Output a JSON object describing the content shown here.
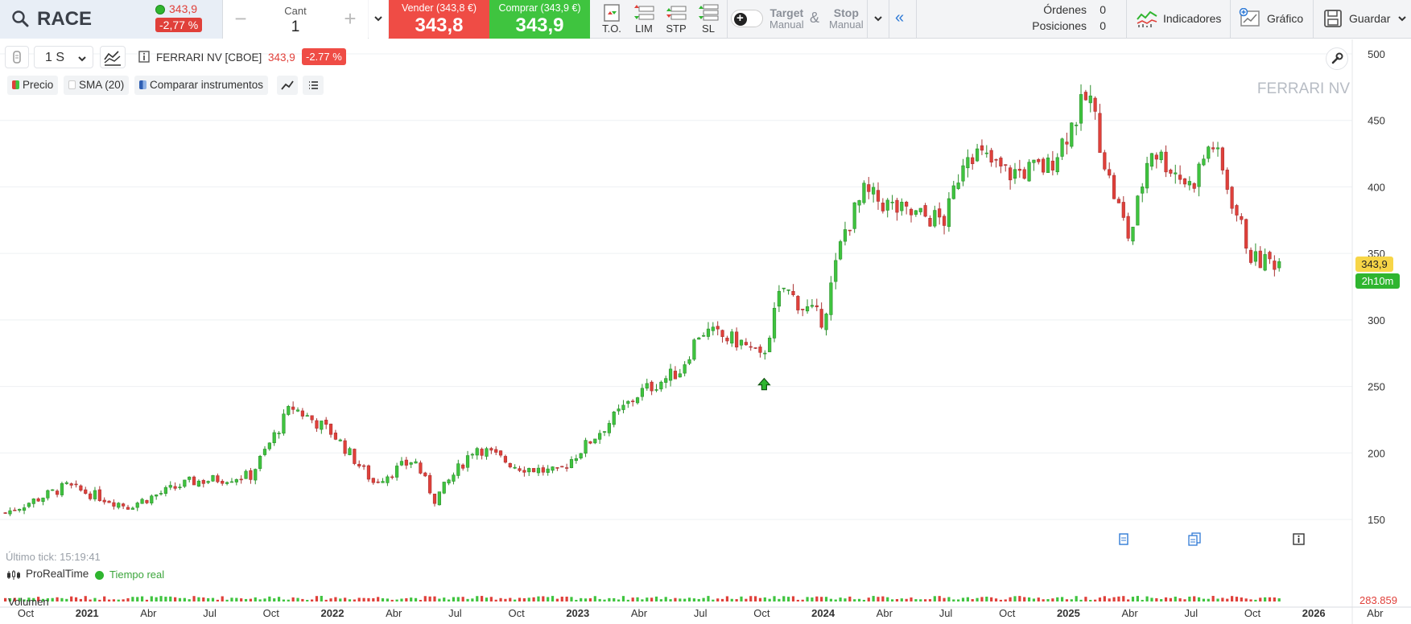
{
  "toolbar": {
    "symbol": "RACE",
    "symbol_price": "343,9",
    "symbol_change": "-2,77 %",
    "qty_label": "Cant",
    "qty_value": "1",
    "qty_minus": "−",
    "qty_plus": "+",
    "sell_label": "Vender (343,8 €)",
    "sell_value": "343,8",
    "buy_label": "Comprar (343,9 €)",
    "buy_value": "343,9",
    "order_types": [
      "T.O.",
      "LIM",
      "STP",
      "SL"
    ],
    "target_label": "Target",
    "target_sub": "Manual",
    "amp": "&",
    "stop_label": "Stop",
    "stop_sub": "Manual",
    "orders_label": "Órdenes",
    "orders_value": "0",
    "positions_label": "Posiciones",
    "positions_value": "0",
    "indicators_label": "Indicadores",
    "chart_label": "Gráfico",
    "save_label": "Guardar"
  },
  "chart_header": {
    "timeframe": "1 S",
    "instrument": "FERRARI NV [CBOE]",
    "price": "343,9",
    "change": "-2.77 %",
    "legend_price": "Precio",
    "legend_sma": "SMA (20)",
    "legend_compare": "Comparar instrumentos",
    "watermark": "FERRARI NV"
  },
  "status": {
    "last_tick": "Último tick: 15:19:41",
    "brand": "ProRealTime",
    "realtime": "Tiempo real",
    "price_tag": "343,9",
    "time_tag": "2h10m",
    "volume_label": "Volumen",
    "volume_value": "283.859"
  },
  "colors": {
    "up": "#3fc43f",
    "down": "#e0403a",
    "sell": "#ef4c45",
    "buy": "#3fc43f",
    "accent": "#2f7ad6"
  },
  "chart_data": {
    "type": "candlestick",
    "ylim": [
      140,
      505
    ],
    "y_ticks": [
      150,
      200,
      250,
      300,
      350,
      400,
      450,
      500
    ],
    "x_ticks": [
      "Oct",
      "2021",
      "Abr",
      "Jul",
      "Oct",
      "2022",
      "Abr",
      "Jul",
      "Oct",
      "2023",
      "Abr",
      "Jul",
      "Oct",
      "2024",
      "Abr",
      "Jul",
      "Oct",
      "2025",
      "Abr",
      "Jul",
      "Oct",
      "2026",
      "Abr"
    ],
    "x_tick_dates": [
      "2020-10",
      "2021-01",
      "2021-04",
      "2021-07",
      "2021-10",
      "2022-01",
      "2022-04",
      "2022-07",
      "2022-10",
      "2023-01",
      "2023-04",
      "2023-07",
      "2023-10",
      "2024-01",
      "2024-04",
      "2024-07",
      "2024-10",
      "2025-01",
      "2025-04",
      "2025-07",
      "2025-10",
      "2026-01",
      "2026-04"
    ],
    "x_bold": [
      "2021",
      "2022",
      "2023",
      "2024",
      "2025",
      "2026"
    ],
    "anchor_dates": [
      "2020-09",
      "2020-12",
      "2021-03",
      "2021-06",
      "2021-09",
      "2021-11",
      "2022-01",
      "2022-03",
      "2022-05",
      "2022-06",
      "2022-08",
      "2022-10",
      "2022-12",
      "2023-02",
      "2023-04",
      "2023-06",
      "2023-07",
      "2023-09",
      "2023-10",
      "2023-11",
      "2023-12",
      "2024-01",
      "2024-02",
      "2024-03",
      "2024-05",
      "2024-07",
      "2024-08",
      "2024-10",
      "2024-12",
      "2025-02",
      "2025-03",
      "2025-04",
      "2025-05",
      "2025-07",
      "2025-08",
      "2025-10",
      "2025-11"
    ],
    "anchor_close": [
      155,
      175,
      160,
      178,
      183,
      235,
      215,
      178,
      195,
      165,
      205,
      190,
      185,
      215,
      245,
      262,
      292,
      283,
      270,
      325,
      310,
      300,
      365,
      395,
      380,
      375,
      430,
      410,
      415,
      470,
      405,
      360,
      430,
      400,
      435,
      345,
      344
    ],
    "signal_date": "2023-10"
  }
}
